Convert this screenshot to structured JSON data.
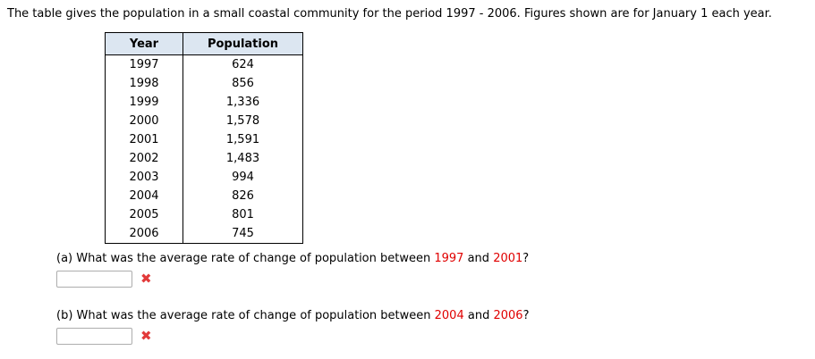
{
  "title": "The table gives the population in a small coastal community for the period 1997 - 2006. Figures shown are for January 1 each year.",
  "table": {
    "headers": {
      "year": "Year",
      "population": "Population"
    },
    "rows": [
      {
        "year": "1997",
        "population": "624"
      },
      {
        "year": "1998",
        "population": "856"
      },
      {
        "year": "1999",
        "population": "1,336"
      },
      {
        "year": "2000",
        "population": "1,578"
      },
      {
        "year": "2001",
        "population": "1,591"
      },
      {
        "year": "2002",
        "population": "1,483"
      },
      {
        "year": "2003",
        "population": "994"
      },
      {
        "year": "2004",
        "population": "826"
      },
      {
        "year": "2005",
        "population": "801"
      },
      {
        "year": "2006",
        "population": "745"
      }
    ]
  },
  "questions": [
    {
      "prefix": "(a) What was the average rate of change of population between ",
      "year_start": "1997",
      "connector": " and ",
      "year_end": "2001",
      "suffix": "?",
      "answer_value": "",
      "result": "incorrect"
    },
    {
      "prefix": "(b) What was the average rate of change of population between ",
      "year_start": "2004",
      "connector": " and ",
      "year_end": "2006",
      "suffix": "?",
      "answer_value": "",
      "result": "incorrect"
    }
  ],
  "icons": {
    "incorrect_glyph": "✖"
  },
  "colors": {
    "table_header_bg": "#dce6f1",
    "highlight_red": "#e00000",
    "incorrect_red": "#e23a3a",
    "table_border": "#000000",
    "input_border": "#adadad"
  }
}
